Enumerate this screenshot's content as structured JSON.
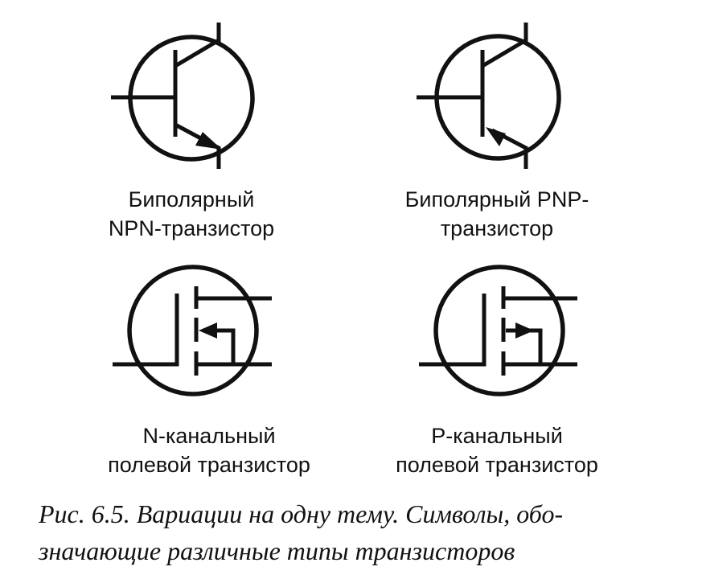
{
  "symbols": [
    {
      "id": "npn",
      "label_lines": [
        "Биполярный",
        "NPN-транзистор"
      ]
    },
    {
      "id": "pnp",
      "label_lines": [
        "Биполярный PNP-",
        "транзистор"
      ]
    },
    {
      "id": "nfet",
      "label_lines": [
        "N-канальный",
        "полевой транзистор"
      ]
    },
    {
      "id": "pfet",
      "label_lines": [
        "P-канальный",
        "полевой транзистор"
      ]
    }
  ],
  "caption": {
    "lines": [
      "Рис. 6.5. Вариации на одну тему. Символы, обо-",
      "значающие различные типы транзисторов"
    ]
  },
  "colors": {
    "ink": "#111111",
    "background": "#ffffff"
  }
}
